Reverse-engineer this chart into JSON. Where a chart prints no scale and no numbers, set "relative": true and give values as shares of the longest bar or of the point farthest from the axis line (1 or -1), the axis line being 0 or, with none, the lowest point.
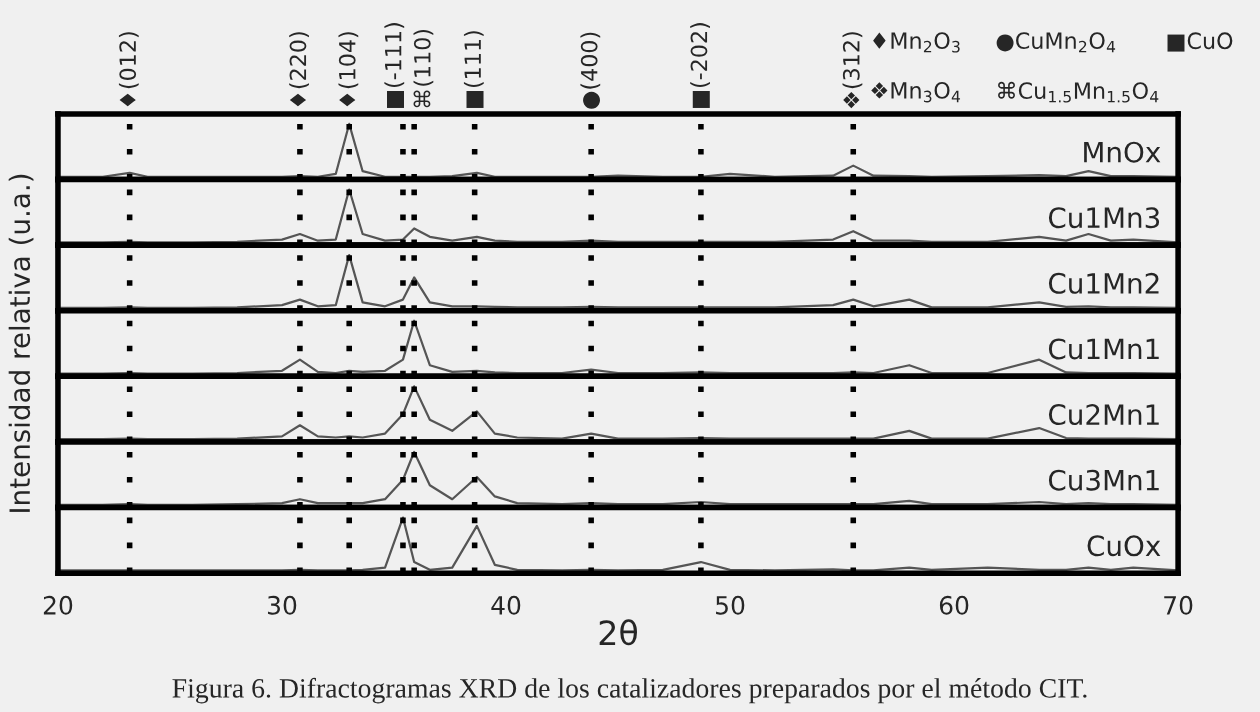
{
  "chart_data": [
    {
      "type": "line",
      "title": "MnOx",
      "relative": true,
      "xlim": [
        20,
        70
      ],
      "tick_labels": false,
      "line_style": "solid",
      "marker": "none",
      "x": [
        20,
        22,
        23.2,
        24,
        26,
        28,
        30,
        30.8,
        31.6,
        32.4,
        33.0,
        33.6,
        34.6,
        35.4,
        35.9,
        36.6,
        37.6,
        38.7,
        39.5,
        40.5,
        42.5,
        43.8,
        45,
        47,
        48.7,
        50,
        52,
        54.6,
        55.5,
        56.4,
        58,
        59,
        61.5,
        63.8,
        65,
        66,
        67,
        68,
        70
      ],
      "series": [
        {
          "color": "#555555",
          "values": [
            0.05,
            0.05,
            0.12,
            0.05,
            0.05,
            0.05,
            0.05,
            0.06,
            0.05,
            0.1,
            1.0,
            0.15,
            0.05,
            0.05,
            0.05,
            0.05,
            0.06,
            0.12,
            0.05,
            0.05,
            0.05,
            0.05,
            0.07,
            0.05,
            0.05,
            0.1,
            0.05,
            0.07,
            0.25,
            0.07,
            0.06,
            0.05,
            0.06,
            0.08,
            0.06,
            0.15,
            0.06,
            0.06,
            0.05
          ]
        }
      ],
      "ref_lines": [
        {
          "axis": "x",
          "value": 23.2,
          "color": "#000000",
          "line_style": "dotted"
        },
        {
          "axis": "x",
          "value": 30.8,
          "color": "#000000",
          "line_style": "dotted"
        },
        {
          "axis": "x",
          "value": 33.0,
          "color": "#000000",
          "line_style": "dotted"
        },
        {
          "axis": "x",
          "value": 35.4,
          "color": "#000000",
          "line_style": "dotted"
        },
        {
          "axis": "x",
          "value": 35.9,
          "color": "#000000",
          "line_style": "dotted"
        },
        {
          "axis": "x",
          "value": 38.6,
          "color": "#000000",
          "line_style": "dotted"
        },
        {
          "axis": "x",
          "value": 43.8,
          "color": "#000000",
          "line_style": "dotted"
        },
        {
          "axis": "x",
          "value": 48.7,
          "color": "#000000",
          "line_style": "dotted"
        },
        {
          "axis": "x",
          "value": 55.5,
          "color": "#000000",
          "line_style": "dotted"
        }
      ],
      "annotations": [
        "♦(012)",
        "♦(220)",
        "♦(104)",
        "■(-111)",
        "⌘(110)",
        "■(111)",
        "●(400)",
        "■(-202)",
        "❖(312)",
        "♦Mn$_{2}$O$_{3}$",
        "●CuMn$_{2}$O$_{4}$",
        "■CuO",
        "❖Mn$_{3}$O$_{4}$",
        "⌘Cu$_{1.5}$Mn$_{1.5}$O$_{4}$"
      ]
    },
    {
      "type": "line",
      "title": "Cu1Mn3",
      "relative": true,
      "xlim": [
        20,
        70
      ],
      "tick_labels": false,
      "x": [
        20,
        22,
        23.2,
        24,
        26,
        28,
        30,
        30.8,
        31.6,
        32.4,
        33.0,
        33.6,
        34.6,
        35.4,
        35.9,
        36.6,
        37.6,
        38.7,
        39.5,
        40.5,
        42.5,
        43.8,
        45,
        47,
        48.7,
        50,
        52,
        54.6,
        55.5,
        56.4,
        58,
        59,
        61.5,
        63.8,
        65,
        66,
        67,
        68,
        70
      ],
      "series": [
        {
          "color": "#555555",
          "values": [
            0.05,
            0.05,
            0.06,
            0.05,
            0.05,
            0.06,
            0.1,
            0.2,
            0.08,
            0.1,
            1.0,
            0.2,
            0.08,
            0.1,
            0.3,
            0.15,
            0.08,
            0.15,
            0.08,
            0.06,
            0.06,
            0.08,
            0.06,
            0.06,
            0.06,
            0.06,
            0.06,
            0.1,
            0.25,
            0.08,
            0.08,
            0.06,
            0.06,
            0.15,
            0.08,
            0.2,
            0.08,
            0.1,
            0.05
          ]
        }
      ],
      "ref_lines": [
        {
          "axis": "x",
          "value": 23.2,
          "color": "#000000",
          "line_style": "dotted"
        },
        {
          "axis": "x",
          "value": 30.8,
          "color": "#000000",
          "line_style": "dotted"
        },
        {
          "axis": "x",
          "value": 33.0,
          "color": "#000000",
          "line_style": "dotted"
        },
        {
          "axis": "x",
          "value": 35.4,
          "color": "#000000",
          "line_style": "dotted"
        },
        {
          "axis": "x",
          "value": 35.9,
          "color": "#000000",
          "line_style": "dotted"
        },
        {
          "axis": "x",
          "value": 38.6,
          "color": "#000000",
          "line_style": "dotted"
        },
        {
          "axis": "x",
          "value": 43.8,
          "color": "#000000",
          "line_style": "dotted"
        },
        {
          "axis": "x",
          "value": 48.7,
          "color": "#000000",
          "line_style": "dotted"
        },
        {
          "axis": "x",
          "value": 55.5,
          "color": "#000000",
          "line_style": "dotted"
        }
      ]
    },
    {
      "type": "line",
      "title": "Cu1Mn2",
      "relative": true,
      "xlim": [
        20,
        70
      ],
      "tick_labels": false,
      "x": [
        20,
        22,
        23.2,
        24,
        26,
        28,
        30,
        30.8,
        31.6,
        32.4,
        33.0,
        33.6,
        34.6,
        35.4,
        35.9,
        36.6,
        37.6,
        38.7,
        39.5,
        40.5,
        42.5,
        43.8,
        45,
        47,
        48.7,
        50,
        52,
        54.6,
        55.5,
        56.4,
        58,
        59,
        61.5,
        63.8,
        65,
        66,
        67,
        68,
        70
      ],
      "series": [
        {
          "color": "#555555",
          "values": [
            0.05,
            0.05,
            0.06,
            0.05,
            0.05,
            0.06,
            0.1,
            0.2,
            0.08,
            0.1,
            1.0,
            0.15,
            0.08,
            0.2,
            0.6,
            0.15,
            0.08,
            0.08,
            0.07,
            0.06,
            0.06,
            0.07,
            0.06,
            0.06,
            0.06,
            0.06,
            0.06,
            0.1,
            0.2,
            0.08,
            0.2,
            0.06,
            0.06,
            0.15,
            0.07,
            0.08,
            0.06,
            0.06,
            0.05
          ]
        }
      ],
      "ref_lines": [
        {
          "axis": "x",
          "value": 23.2,
          "color": "#000000",
          "line_style": "dotted"
        },
        {
          "axis": "x",
          "value": 30.8,
          "color": "#000000",
          "line_style": "dotted"
        },
        {
          "axis": "x",
          "value": 33.0,
          "color": "#000000",
          "line_style": "dotted"
        },
        {
          "axis": "x",
          "value": 35.4,
          "color": "#000000",
          "line_style": "dotted"
        },
        {
          "axis": "x",
          "value": 35.9,
          "color": "#000000",
          "line_style": "dotted"
        },
        {
          "axis": "x",
          "value": 38.6,
          "color": "#000000",
          "line_style": "dotted"
        },
        {
          "axis": "x",
          "value": 43.8,
          "color": "#000000",
          "line_style": "dotted"
        },
        {
          "axis": "x",
          "value": 48.7,
          "color": "#000000",
          "line_style": "dotted"
        },
        {
          "axis": "x",
          "value": 55.5,
          "color": "#000000",
          "line_style": "dotted"
        }
      ]
    },
    {
      "type": "line",
      "title": "Cu1Mn1",
      "ylabel": "Intensidad relativa (u.a.)",
      "relative": true,
      "xlim": [
        20,
        70
      ],
      "tick_labels": false,
      "x": [
        20,
        22,
        23.2,
        24,
        26,
        28,
        30,
        30.8,
        31.6,
        32.4,
        33.0,
        33.6,
        34.6,
        35.4,
        35.9,
        36.6,
        37.6,
        38.7,
        39.5,
        40.5,
        42.5,
        43.8,
        45,
        47,
        48.7,
        50,
        52,
        54.6,
        55.5,
        56.4,
        58,
        59,
        61.5,
        63.8,
        65,
        66,
        67,
        68,
        70
      ],
      "series": [
        {
          "color": "#555555",
          "values": [
            0.05,
            0.05,
            0.06,
            0.05,
            0.05,
            0.06,
            0.1,
            0.3,
            0.08,
            0.06,
            0.1,
            0.08,
            0.1,
            0.3,
            1.0,
            0.2,
            0.08,
            0.1,
            0.07,
            0.06,
            0.06,
            0.12,
            0.06,
            0.06,
            0.07,
            0.06,
            0.06,
            0.06,
            0.07,
            0.06,
            0.2,
            0.06,
            0.06,
            0.3,
            0.07,
            0.06,
            0.06,
            0.06,
            0.05
          ]
        }
      ],
      "ref_lines": [
        {
          "axis": "x",
          "value": 23.2,
          "color": "#000000",
          "line_style": "dotted"
        },
        {
          "axis": "x",
          "value": 30.8,
          "color": "#000000",
          "line_style": "dotted"
        },
        {
          "axis": "x",
          "value": 33.0,
          "color": "#000000",
          "line_style": "dotted"
        },
        {
          "axis": "x",
          "value": 35.4,
          "color": "#000000",
          "line_style": "dotted"
        },
        {
          "axis": "x",
          "value": 35.9,
          "color": "#000000",
          "line_style": "dotted"
        },
        {
          "axis": "x",
          "value": 38.6,
          "color": "#000000",
          "line_style": "dotted"
        },
        {
          "axis": "x",
          "value": 43.8,
          "color": "#000000",
          "line_style": "dotted"
        },
        {
          "axis": "x",
          "value": 48.7,
          "color": "#000000",
          "line_style": "dotted"
        },
        {
          "axis": "x",
          "value": 55.5,
          "color": "#000000",
          "line_style": "dotted"
        }
      ]
    },
    {
      "type": "line",
      "title": "Cu2Mn1",
      "relative": true,
      "xlim": [
        20,
        70
      ],
      "tick_labels": false,
      "x": [
        20,
        22,
        23.2,
        24,
        26,
        28,
        30,
        30.8,
        31.6,
        32.4,
        33.0,
        33.6,
        34.6,
        35.4,
        35.9,
        36.6,
        37.6,
        38.7,
        39.5,
        40.5,
        42.5,
        43.8,
        45,
        47,
        48.7,
        50,
        52,
        54.6,
        55.5,
        56.4,
        58,
        59,
        61.5,
        63.8,
        65,
        66,
        67,
        68,
        70
      ],
      "series": [
        {
          "color": "#555555",
          "values": [
            0.05,
            0.05,
            0.06,
            0.05,
            0.05,
            0.06,
            0.1,
            0.3,
            0.1,
            0.08,
            0.1,
            0.08,
            0.15,
            0.5,
            1.0,
            0.4,
            0.2,
            0.55,
            0.15,
            0.08,
            0.06,
            0.15,
            0.06,
            0.06,
            0.07,
            0.06,
            0.06,
            0.06,
            0.06,
            0.06,
            0.2,
            0.06,
            0.06,
            0.25,
            0.07,
            0.06,
            0.06,
            0.06,
            0.05
          ]
        }
      ],
      "ref_lines": [
        {
          "axis": "x",
          "value": 23.2,
          "color": "#000000",
          "line_style": "dotted"
        },
        {
          "axis": "x",
          "value": 30.8,
          "color": "#000000",
          "line_style": "dotted"
        },
        {
          "axis": "x",
          "value": 33.0,
          "color": "#000000",
          "line_style": "dotted"
        },
        {
          "axis": "x",
          "value": 35.4,
          "color": "#000000",
          "line_style": "dotted"
        },
        {
          "axis": "x",
          "value": 35.9,
          "color": "#000000",
          "line_style": "dotted"
        },
        {
          "axis": "x",
          "value": 38.6,
          "color": "#000000",
          "line_style": "dotted"
        },
        {
          "axis": "x",
          "value": 43.8,
          "color": "#000000",
          "line_style": "dotted"
        },
        {
          "axis": "x",
          "value": 48.7,
          "color": "#000000",
          "line_style": "dotted"
        },
        {
          "axis": "x",
          "value": 55.5,
          "color": "#000000",
          "line_style": "dotted"
        }
      ]
    },
    {
      "type": "line",
      "title": "Cu3Mn1",
      "relative": true,
      "xlim": [
        20,
        70
      ],
      "tick_labels": false,
      "x": [
        20,
        22,
        23.2,
        24,
        26,
        28,
        30,
        30.8,
        31.6,
        32.4,
        33.0,
        33.6,
        34.6,
        35.4,
        35.9,
        36.6,
        37.6,
        38.7,
        39.5,
        40.5,
        42.5,
        43.8,
        45,
        47,
        48.7,
        50,
        52,
        54.6,
        55.5,
        56.4,
        58,
        59,
        61.5,
        63.8,
        65,
        66,
        67,
        68,
        70
      ],
      "series": [
        {
          "color": "#555555",
          "values": [
            0.05,
            0.05,
            0.06,
            0.05,
            0.05,
            0.06,
            0.08,
            0.15,
            0.08,
            0.08,
            0.08,
            0.08,
            0.15,
            0.5,
            1.0,
            0.4,
            0.15,
            0.55,
            0.2,
            0.08,
            0.06,
            0.08,
            0.06,
            0.06,
            0.1,
            0.06,
            0.06,
            0.06,
            0.06,
            0.06,
            0.12,
            0.06,
            0.06,
            0.1,
            0.06,
            0.08,
            0.06,
            0.06,
            0.05
          ]
        }
      ],
      "ref_lines": [
        {
          "axis": "x",
          "value": 23.2,
          "color": "#000000",
          "line_style": "dotted"
        },
        {
          "axis": "x",
          "value": 30.8,
          "color": "#000000",
          "line_style": "dotted"
        },
        {
          "axis": "x",
          "value": 33.0,
          "color": "#000000",
          "line_style": "dotted"
        },
        {
          "axis": "x",
          "value": 35.4,
          "color": "#000000",
          "line_style": "dotted"
        },
        {
          "axis": "x",
          "value": 35.9,
          "color": "#000000",
          "line_style": "dotted"
        },
        {
          "axis": "x",
          "value": 38.6,
          "color": "#000000",
          "line_style": "dotted"
        },
        {
          "axis": "x",
          "value": 43.8,
          "color": "#000000",
          "line_style": "dotted"
        },
        {
          "axis": "x",
          "value": 48.7,
          "color": "#000000",
          "line_style": "dotted"
        },
        {
          "axis": "x",
          "value": 55.5,
          "color": "#000000",
          "line_style": "dotted"
        }
      ]
    },
    {
      "type": "line",
      "title": "CuOx",
      "xlabel": "2θ",
      "relative": true,
      "xlim": [
        20,
        70
      ],
      "xticks": [
        20,
        30,
        40,
        50,
        60,
        70
      ],
      "tick_labels": "x",
      "x": [
        20,
        22,
        23.2,
        24,
        26,
        28,
        30,
        30.8,
        31.6,
        32.4,
        33.0,
        33.6,
        34.6,
        35.4,
        35.9,
        36.6,
        37.6,
        38.7,
        39.5,
        40.5,
        42.5,
        43.8,
        45,
        47,
        48.7,
        50,
        52,
        54.6,
        55.5,
        56.4,
        58,
        59,
        61.5,
        63.8,
        65,
        66,
        67,
        68,
        70
      ],
      "series": [
        {
          "color": "#555555",
          "values": [
            0.05,
            0.05,
            0.05,
            0.05,
            0.05,
            0.05,
            0.05,
            0.06,
            0.05,
            0.05,
            0.05,
            0.06,
            0.1,
            1.0,
            0.2,
            0.06,
            0.1,
            0.85,
            0.15,
            0.06,
            0.05,
            0.06,
            0.05,
            0.06,
            0.2,
            0.06,
            0.05,
            0.07,
            0.05,
            0.05,
            0.1,
            0.06,
            0.1,
            0.06,
            0.06,
            0.1,
            0.06,
            0.1,
            0.05
          ]
        }
      ],
      "ref_lines": [
        {
          "axis": "x",
          "value": 23.2,
          "color": "#000000",
          "line_style": "dotted"
        },
        {
          "axis": "x",
          "value": 30.8,
          "color": "#000000",
          "line_style": "dotted"
        },
        {
          "axis": "x",
          "value": 33.0,
          "color": "#000000",
          "line_style": "dotted"
        },
        {
          "axis": "x",
          "value": 35.4,
          "color": "#000000",
          "line_style": "dotted"
        },
        {
          "axis": "x",
          "value": 35.9,
          "color": "#000000",
          "line_style": "dotted"
        },
        {
          "axis": "x",
          "value": 38.6,
          "color": "#000000",
          "line_style": "dotted"
        },
        {
          "axis": "x",
          "value": 43.8,
          "color": "#000000",
          "line_style": "dotted"
        },
        {
          "axis": "x",
          "value": 48.7,
          "color": "#000000",
          "line_style": "dotted"
        },
        {
          "axis": "x",
          "value": 55.5,
          "color": "#000000",
          "line_style": "dotted"
        }
      ],
      "annotations": [
        "Figura 6. Difractogramas XRD de los catalizadores preparados por el método CIT."
      ]
    }
  ]
}
